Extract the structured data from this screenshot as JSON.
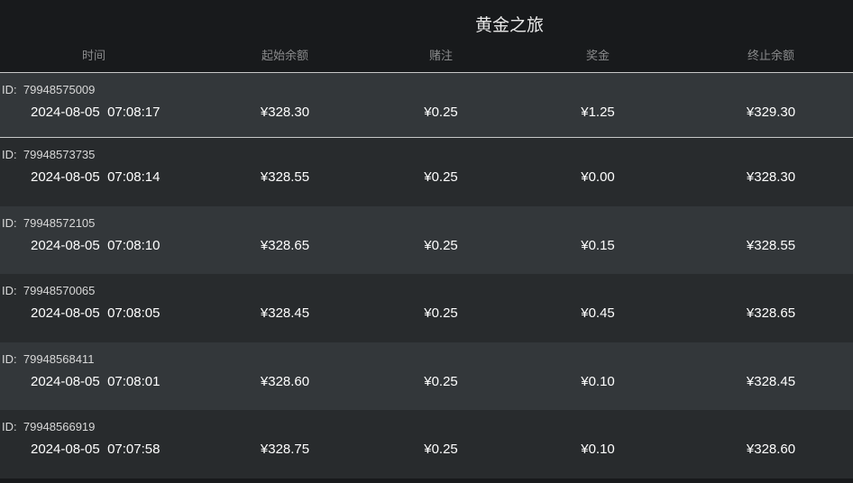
{
  "title": "黄金之旅",
  "columns": [
    "时间",
    "起始余额",
    "赌注",
    "奖金",
    "终止余额"
  ],
  "id_label": "ID:",
  "rows": [
    {
      "id": "79948575009",
      "time": "2024-08-05  07:08:17",
      "start": "¥328.30",
      "bet": "¥0.25",
      "prize": "¥1.25",
      "end": "¥329.30"
    },
    {
      "id": "79948573735",
      "time": "2024-08-05  07:08:14",
      "start": "¥328.55",
      "bet": "¥0.25",
      "prize": "¥0.00",
      "end": "¥328.30"
    },
    {
      "id": "79948572105",
      "time": "2024-08-05  07:08:10",
      "start": "¥328.65",
      "bet": "¥0.25",
      "prize": "¥0.15",
      "end": "¥328.55"
    },
    {
      "id": "79948570065",
      "time": "2024-08-05  07:08:05",
      "start": "¥328.45",
      "bet": "¥0.25",
      "prize": "¥0.45",
      "end": "¥328.65"
    },
    {
      "id": "79948568411",
      "time": "2024-08-05  07:08:01",
      "start": "¥328.60",
      "bet": "¥0.25",
      "prize": "¥0.10",
      "end": "¥328.45"
    },
    {
      "id": "79948566919",
      "time": "2024-08-05  07:07:58",
      "start": "¥328.75",
      "bet": "¥0.25",
      "prize": "¥0.10",
      "end": "¥328.60"
    }
  ]
}
